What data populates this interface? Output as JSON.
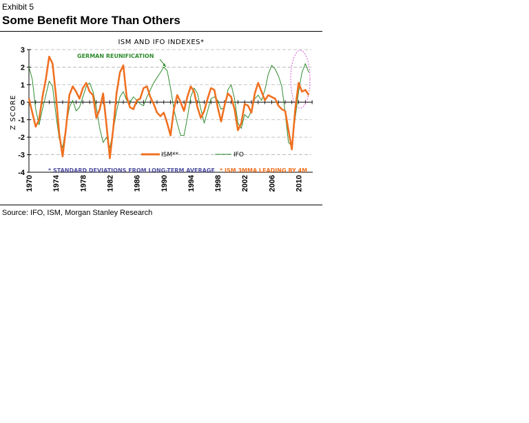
{
  "header": {
    "exhibit": "Exhibit 5",
    "title": "Some Benefit More Than Others"
  },
  "footer": {
    "source": "Source: IFO, ISM, Morgan Stanley Research"
  },
  "colors": {
    "ism": "#f07020",
    "ifo": "#2e8b2e",
    "footnote": "#5050a0",
    "highlight": "#d050d0",
    "annotation": "#2e8b2e",
    "grid": "#b0b0b0"
  },
  "chart_data": {
    "type": "line",
    "title": "ISM AND IFO INDEXES*",
    "ylabel": "Z SCORE",
    "xlabel": "",
    "xlim": [
      1970,
      2012.5
    ],
    "ylim": [
      -4,
      3
    ],
    "x_ticks": [
      "1970",
      "1974",
      "1978",
      "1982",
      "1986",
      "1990",
      "1994",
      "1998",
      "2002",
      "2006",
      "2010"
    ],
    "y_ticks": [
      "3",
      "2",
      "1",
      "0",
      "-1",
      "-2",
      "-3",
      "-4"
    ],
    "grid": "horizontal dashed",
    "legend_position": "bottom-center",
    "annotations": {
      "reunification": "GERMAN REUNIFICATION",
      "footnote_left": "* STANDARD DEVIATIONS FROM LONG-TERM AVERAGE",
      "footnote_right": "* ISM 3MMA LEADING BY 4M"
    },
    "series": [
      {
        "name": "ISM**",
        "x": [
          1970,
          1970.5,
          1971,
          1971.5,
          1972,
          1972.5,
          1973,
          1973.5,
          1974,
          1974.5,
          1975,
          1975.5,
          1976,
          1976.5,
          1977,
          1977.5,
          1978,
          1978.5,
          1979,
          1979.5,
          1980,
          1980.5,
          1981,
          1981.5,
          1982,
          1982.5,
          1983,
          1983.5,
          1984,
          1984.5,
          1985,
          1985.5,
          1986,
          1986.5,
          1987,
          1987.5,
          1988,
          1988.5,
          1989,
          1989.5,
          1990,
          1990.5,
          1991,
          1991.5,
          1992,
          1992.5,
          1993,
          1993.5,
          1994,
          1994.5,
          1995,
          1995.5,
          1996,
          1996.5,
          1997,
          1997.5,
          1998,
          1998.5,
          1999,
          1999.5,
          2000,
          2000.5,
          2001,
          2001.5,
          2002,
          2002.5,
          2003,
          2003.5,
          2004,
          2004.5,
          2005,
          2005.5,
          2006,
          2006.5,
          2007,
          2007.5,
          2008,
          2008.5,
          2009,
          2009.5,
          2010,
          2010.5,
          2011,
          2011.5
        ],
        "values": [
          0.2,
          -0.6,
          -1.4,
          -1.0,
          0.3,
          1.3,
          2.6,
          2.2,
          0.4,
          -1.8,
          -3.1,
          -1.5,
          0.4,
          0.9,
          0.6,
          0.2,
          0.8,
          1.1,
          0.6,
          0.4,
          -0.9,
          -0.4,
          0.5,
          -1.3,
          -3.2,
          -1.5,
          0.5,
          1.7,
          2.1,
          0.3,
          -0.3,
          -0.4,
          0.1,
          0.2,
          0.8,
          0.9,
          0.3,
          -0.1,
          -0.6,
          -0.8,
          -0.6,
          -1.2,
          -1.9,
          -0.4,
          0.4,
          0.0,
          -0.5,
          0.3,
          0.9,
          0.6,
          -0.3,
          -0.9,
          -0.5,
          0.2,
          0.8,
          0.7,
          -0.3,
          -1.1,
          -0.2,
          0.5,
          0.3,
          -0.4,
          -1.6,
          -1.2,
          -0.1,
          -0.2,
          -0.6,
          0.5,
          1.1,
          0.6,
          0.1,
          0.4,
          0.3,
          0.2,
          -0.2,
          -0.4,
          -0.5,
          -1.6,
          -2.7,
          -0.4,
          1.1,
          0.6,
          0.7,
          0.4
        ]
      },
      {
        "name": "IFO",
        "x": [
          1970,
          1970.5,
          1971,
          1971.5,
          1972,
          1972.5,
          1973,
          1973.5,
          1974,
          1974.5,
          1975,
          1975.5,
          1976,
          1976.5,
          1977,
          1977.5,
          1978,
          1978.5,
          1979,
          1979.5,
          1980,
          1980.5,
          1981,
          1981.5,
          1982,
          1982.5,
          1983,
          1983.5,
          1984,
          1984.5,
          1985,
          1985.5,
          1986,
          1986.5,
          1987,
          1987.5,
          1988,
          1988.5,
          1989,
          1989.5,
          1990,
          1990.5,
          1991,
          1991.5,
          1992,
          1992.5,
          1993,
          1993.5,
          1994,
          1994.5,
          1995,
          1995.5,
          1996,
          1996.5,
          1997,
          1997.5,
          1998,
          1998.5,
          1999,
          1999.5,
          2000,
          2000.5,
          2001,
          2001.5,
          2002,
          2002.5,
          2003,
          2003.5,
          2004,
          2004.5,
          2005,
          2005.5,
          2006,
          2006.5,
          2007,
          2007.5,
          2008,
          2008.5,
          2009,
          2009.5,
          2010,
          2010.5,
          2011,
          2011.5
        ],
        "values": [
          2.0,
          1.3,
          -0.4,
          -1.3,
          -0.4,
          0.4,
          1.2,
          0.9,
          -0.7,
          -2.1,
          -2.6,
          -1.4,
          -0.3,
          0.1,
          -0.5,
          -0.3,
          0.3,
          0.9,
          1.1,
          0.6,
          -0.3,
          -1.5,
          -2.3,
          -2.0,
          -2.6,
          -1.6,
          -0.5,
          0.3,
          0.6,
          0.1,
          0.0,
          0.3,
          0.1,
          -0.1,
          -0.2,
          0.3,
          0.7,
          1.1,
          1.4,
          1.7,
          2.0,
          1.8,
          0.8,
          -0.4,
          -1.2,
          -1.9,
          -1.9,
          -0.9,
          0.3,
          0.8,
          0.5,
          -0.4,
          -1.2,
          -0.5,
          0.2,
          0.3,
          0.1,
          -0.4,
          -0.3,
          0.7,
          1.0,
          0.2,
          -1.2,
          -1.5,
          -0.7,
          -0.9,
          -0.5,
          0.2,
          0.4,
          0.1,
          0.7,
          1.6,
          2.1,
          1.9,
          1.5,
          0.9,
          -0.6,
          -2.3,
          -2.5,
          -0.9,
          0.6,
          1.7,
          2.2,
          1.7
        ]
      }
    ]
  }
}
